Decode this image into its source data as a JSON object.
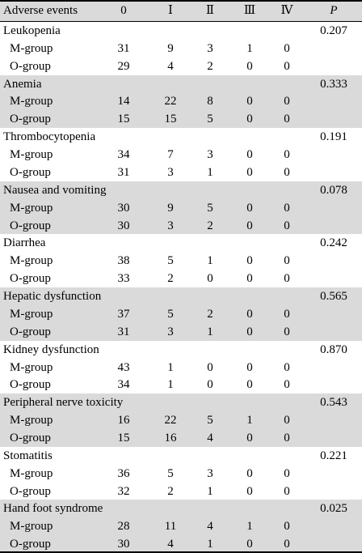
{
  "table": {
    "header": [
      "Adverse events",
      "0",
      "Ⅰ",
      "Ⅱ",
      "Ⅲ",
      "Ⅳ",
      "P"
    ],
    "groups": [
      {
        "name": "Leukopenia",
        "p": "0.207",
        "rows": [
          {
            "label": "M-group",
            "values": [
              31,
              9,
              3,
              1,
              0
            ]
          },
          {
            "label": "O-group",
            "values": [
              29,
              4,
              2,
              0,
              0
            ]
          }
        ]
      },
      {
        "name": "Anemia",
        "p": "0.333",
        "rows": [
          {
            "label": "M-group",
            "values": [
              14,
              22,
              8,
              0,
              0
            ]
          },
          {
            "label": "O-group",
            "values": [
              15,
              15,
              5,
              0,
              0
            ]
          }
        ]
      },
      {
        "name": "Thrombocytopenia",
        "p": "0.191",
        "rows": [
          {
            "label": "M-group",
            "values": [
              34,
              7,
              3,
              0,
              0
            ]
          },
          {
            "label": "O-group",
            "values": [
              31,
              3,
              1,
              0,
              0
            ]
          }
        ]
      },
      {
        "name": "Nausea and vomiting",
        "p": "0.078",
        "rows": [
          {
            "label": "M-group",
            "values": [
              30,
              9,
              5,
              0,
              0
            ]
          },
          {
            "label": "O-group",
            "values": [
              30,
              3,
              2,
              0,
              0
            ]
          }
        ]
      },
      {
        "name": "Diarrhea",
        "p": "0.242",
        "rows": [
          {
            "label": "M-group",
            "values": [
              38,
              5,
              1,
              0,
              0
            ]
          },
          {
            "label": "O-group",
            "values": [
              33,
              2,
              0,
              0,
              0
            ]
          }
        ]
      },
      {
        "name": "Hepatic dysfunction",
        "p": "0.565",
        "rows": [
          {
            "label": "M-group",
            "values": [
              37,
              5,
              2,
              0,
              0
            ]
          },
          {
            "label": "O-group",
            "values": [
              31,
              3,
              1,
              0,
              0
            ]
          }
        ]
      },
      {
        "name": "Kidney dysfunction",
        "p": "0.870",
        "rows": [
          {
            "label": "M-group",
            "values": [
              43,
              1,
              0,
              0,
              0
            ]
          },
          {
            "label": "O-group",
            "values": [
              34,
              1,
              0,
              0,
              0
            ]
          }
        ]
      },
      {
        "name": "Peripheral nerve toxicity",
        "p": "0.543",
        "rows": [
          {
            "label": "M-group",
            "values": [
              16,
              22,
              5,
              1,
              0
            ]
          },
          {
            "label": "O-group",
            "values": [
              15,
              16,
              4,
              0,
              0
            ]
          }
        ]
      },
      {
        "name": "Stomatitis",
        "p": "0.221",
        "rows": [
          {
            "label": "M-group",
            "values": [
              36,
              5,
              3,
              0,
              0
            ]
          },
          {
            "label": "O-group",
            "values": [
              32,
              2,
              1,
              0,
              0
            ]
          }
        ]
      },
      {
        "name": "Hand foot syndrome",
        "p": "0.025",
        "rows": [
          {
            "label": "M-group",
            "values": [
              28,
              11,
              4,
              1,
              0
            ]
          },
          {
            "label": "O-group",
            "values": [
              30,
              4,
              1,
              0,
              0
            ]
          }
        ]
      }
    ]
  }
}
